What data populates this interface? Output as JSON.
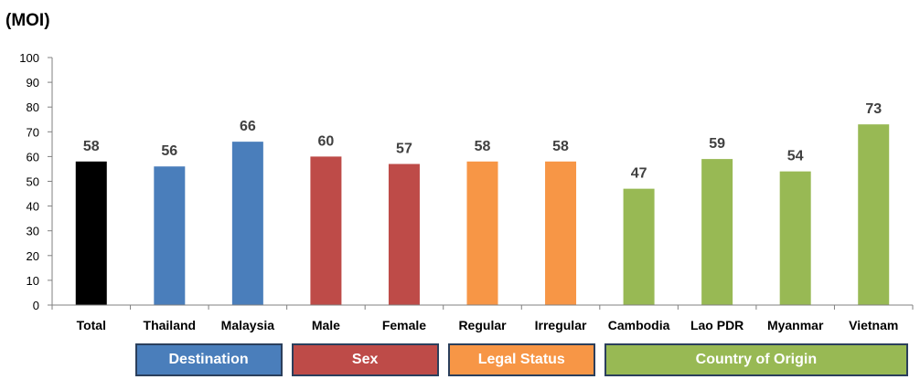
{
  "chart_data": {
    "type": "bar",
    "title": "(MOI)",
    "xlabel": "",
    "ylabel": "",
    "ylim": [
      0,
      100
    ],
    "yticks": [
      0,
      10,
      20,
      30,
      40,
      50,
      60,
      70,
      80,
      90,
      100
    ],
    "grid": false,
    "legend": "none",
    "categories": [
      "Total",
      "Thailand",
      "Malaysia",
      "Male",
      "Female",
      "Regular",
      "Irregular",
      "Cambodia",
      "Lao PDR",
      "Myanmar",
      "Vietnam"
    ],
    "values": [
      58,
      56,
      66,
      60,
      57,
      58,
      58,
      47,
      59,
      54,
      73
    ],
    "bar_colors": [
      "#000000",
      "#4a7ebb",
      "#4a7ebb",
      "#be4b48",
      "#be4b48",
      "#f79646",
      "#f79646",
      "#98b954",
      "#98b954",
      "#98b954",
      "#98b954"
    ],
    "groups": [
      {
        "label": "Destination",
        "color": "#4a7ebb",
        "first": 1,
        "last": 2
      },
      {
        "label": "Sex",
        "color": "#be4b48",
        "first": 3,
        "last": 4
      },
      {
        "label": "Legal Status",
        "color": "#f79646",
        "first": 5,
        "last": 6
      },
      {
        "label": "Country of Origin",
        "color": "#98b954",
        "first": 7,
        "last": 10
      }
    ]
  }
}
